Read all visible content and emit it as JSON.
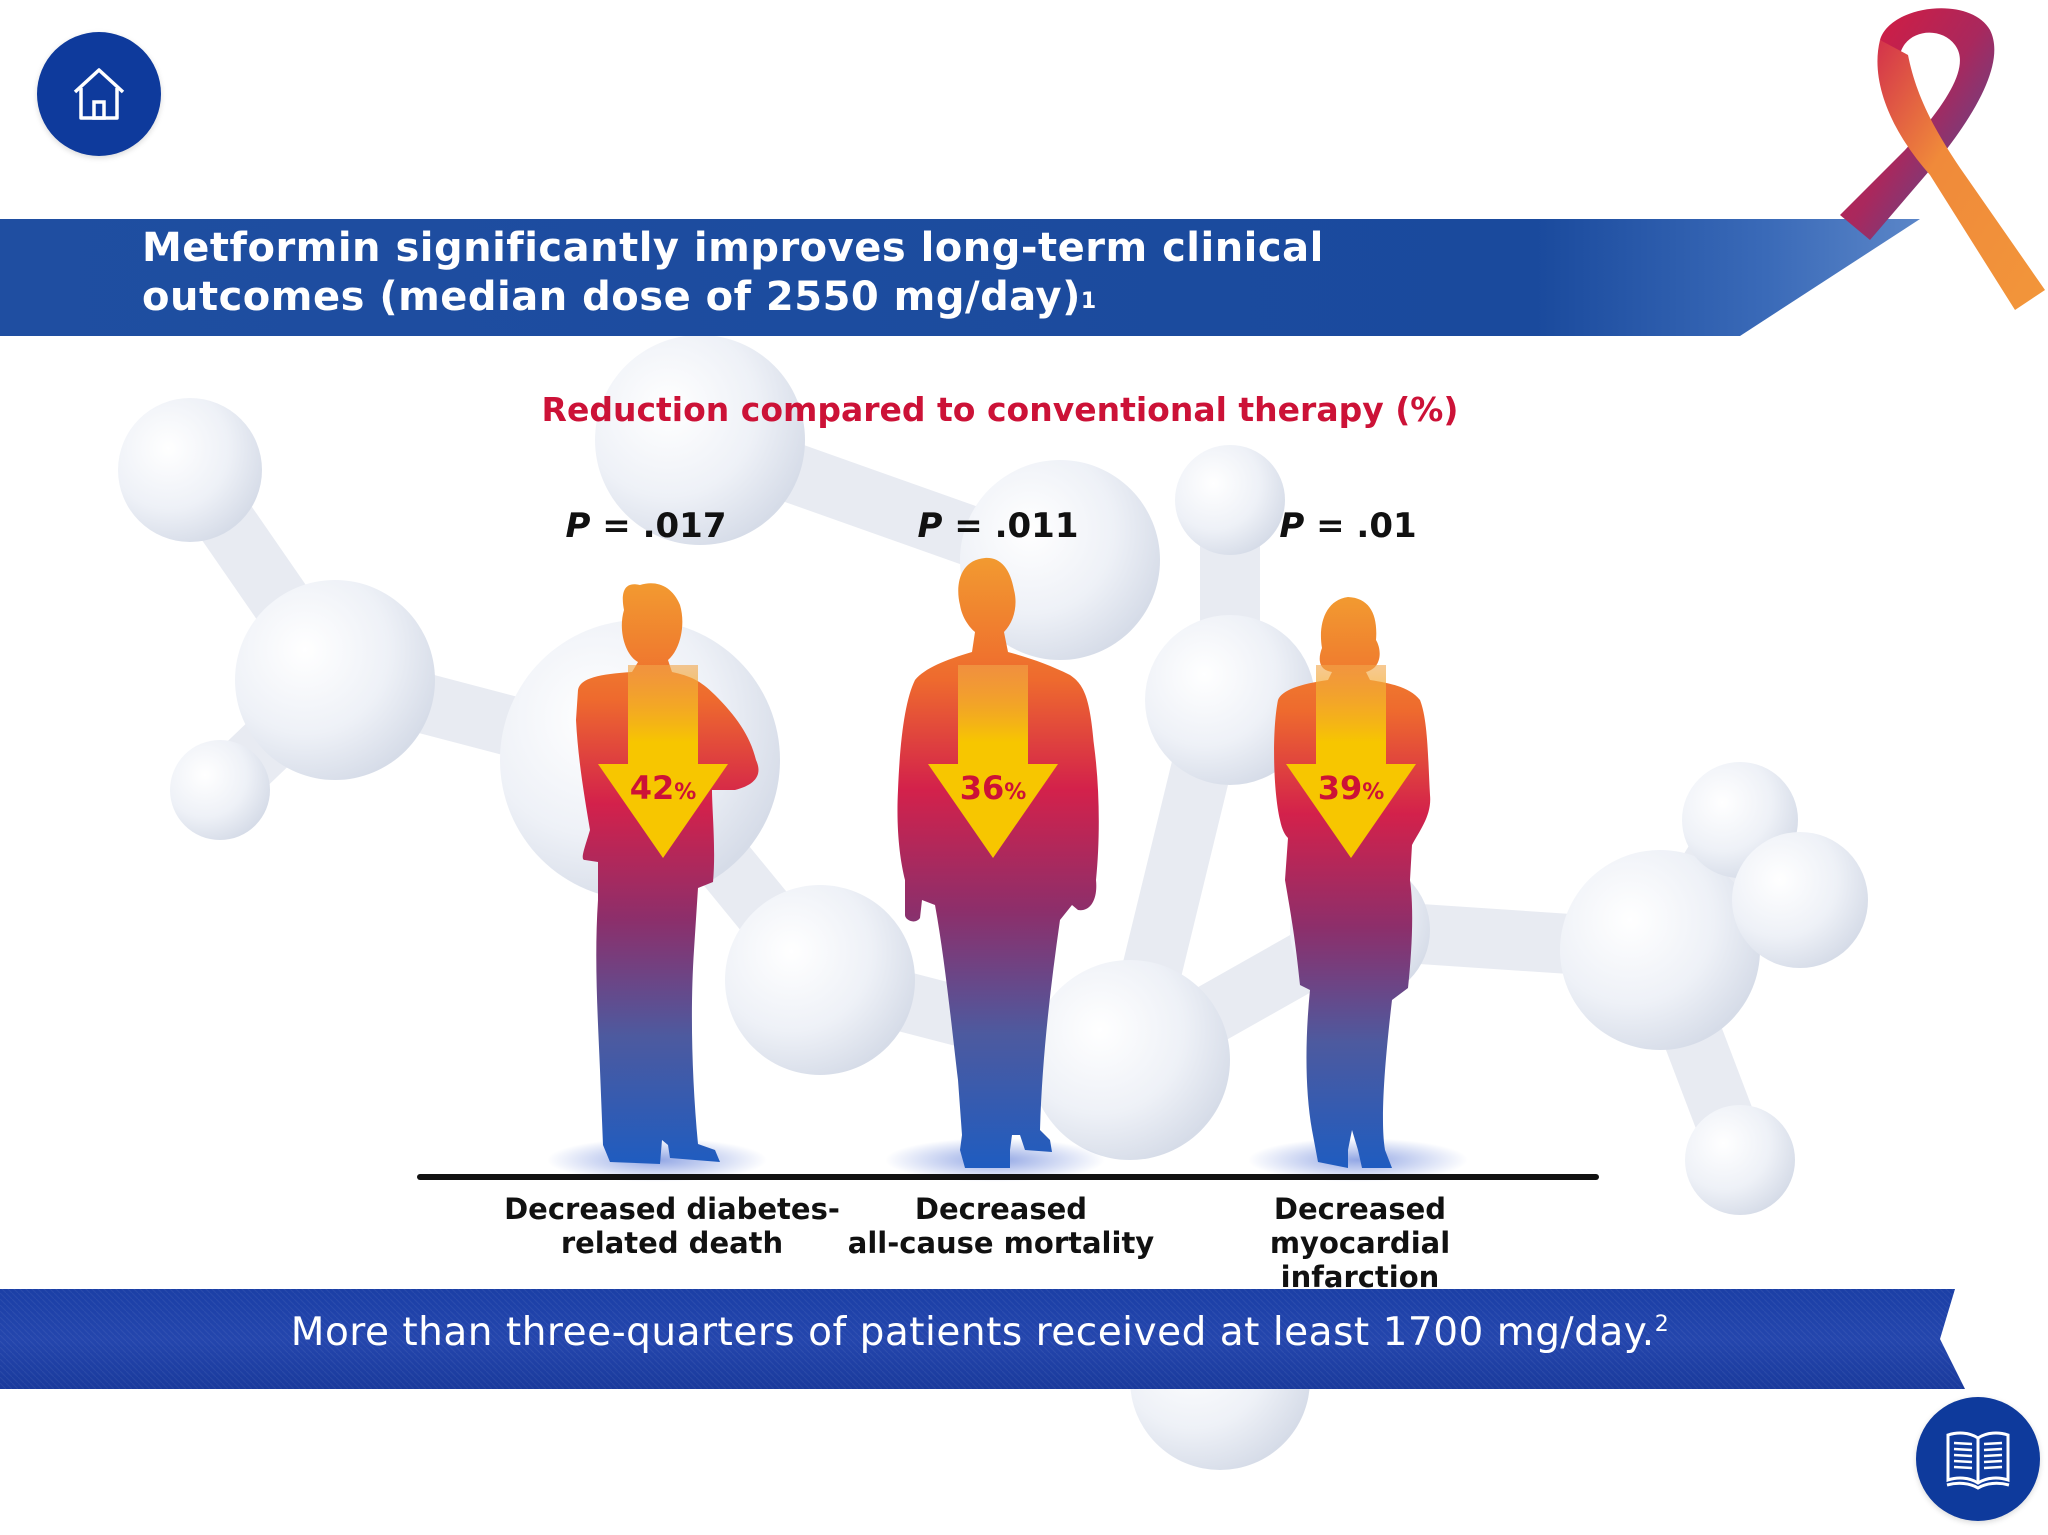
{
  "title": {
    "line1": "Metformin significantly improves long-term clinical",
    "line2": "outcomes (median dose of 2550 mg/day)",
    "ref": "1"
  },
  "chart_data": {
    "type": "bar",
    "title": "Reduction compared to conventional therapy (%)",
    "categories": [
      "Decreased diabetes-related death",
      "Decreased all-cause mortality",
      "Decreased myocardial infarction"
    ],
    "values": [
      42,
      36,
      39
    ],
    "unit": "%",
    "p_values": [
      ".017",
      ".011",
      ".01"
    ]
  },
  "outcomes": [
    {
      "p_label": "P",
      "p_rest": " = .017",
      "value": "42",
      "unit": "%",
      "label_line1": "Decreased diabetes-",
      "label_line2": "related death"
    },
    {
      "p_label": "P",
      "p_rest": " = .011",
      "value": "36",
      "unit": "%",
      "label_line1": "Decreased",
      "label_line2": "all-cause mortality"
    },
    {
      "p_label": "P",
      "p_rest": " = .01",
      "value": "39",
      "unit": "%",
      "label_line1": "Decreased myocardial",
      "label_line2": "infarction"
    }
  ],
  "footer": {
    "text": "More than three-quarters of patients received at least 1700 mg/day.",
    "ref": "2"
  },
  "icons": {
    "home": "home-icon",
    "references": "book-icon",
    "ribbon": "awareness-ribbon"
  },
  "colors": {
    "brand_blue": "#0e3a9c",
    "accent_red": "#cc1237",
    "arrow_yellow": "#f7c600"
  }
}
